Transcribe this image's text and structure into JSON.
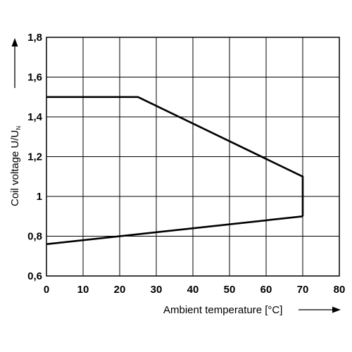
{
  "chart_data": {
    "type": "line",
    "xlabel": "Ambient temperature [°C]",
    "ylabel_main": "Coil voltage U/U",
    "ylabel_subscript": "N",
    "x_ticks": [
      "0",
      "10",
      "20",
      "30",
      "40",
      "50",
      "60",
      "70",
      "80"
    ],
    "y_ticks": [
      "0,6",
      "0,8",
      "1",
      "1,2",
      "1,4",
      "1,6",
      "1,8"
    ],
    "xlim": [
      0,
      80
    ],
    "ylim": [
      0.6,
      1.8
    ],
    "grid": true,
    "series": [
      {
        "x": [
          0,
          25,
          70,
          70
        ],
        "y": [
          1.5,
          1.5,
          1.1,
          0.9
        ]
      },
      {
        "x": [
          0,
          70
        ],
        "y": [
          0.76,
          0.9
        ]
      }
    ]
  }
}
